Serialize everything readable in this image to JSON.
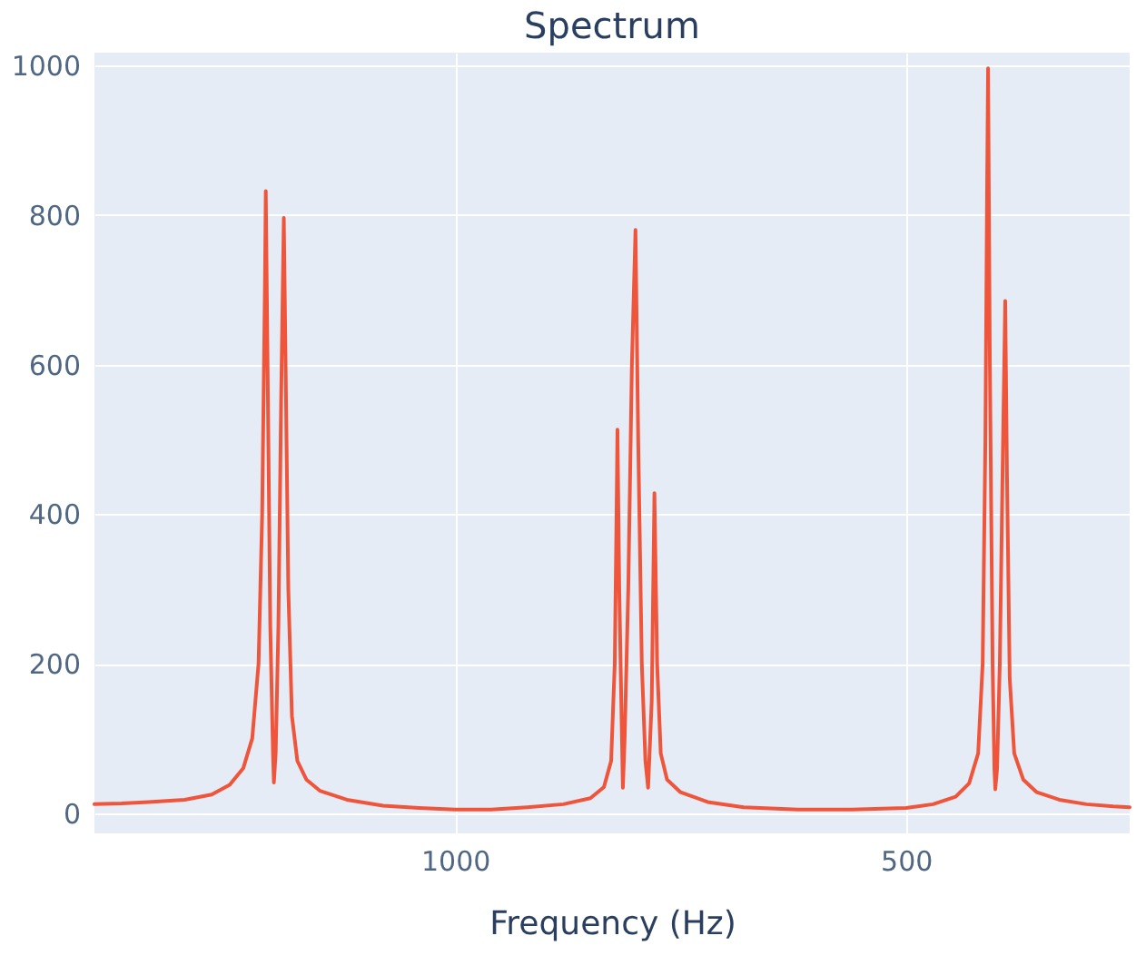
{
  "chart_data": {
    "type": "line",
    "title": "Spectrum",
    "xlabel": "Frequency (Hz)",
    "xlim": [
      1400,
      252
    ],
    "xticks": [
      1000,
      500
    ],
    "ylim": [
      -27,
      1017
    ],
    "yticks": [
      0,
      200,
      400,
      600,
      800,
      1000
    ],
    "grid": true,
    "legend": false,
    "marker": "none",
    "line_style": "solid",
    "series": [
      {
        "color": "#ef553b",
        "x": [
          1400,
          1370,
          1340,
          1300,
          1270,
          1250,
          1235,
          1225,
          1218,
          1214,
          1211,
          1210,
          1208,
          1205,
          1202,
          1201,
          1199,
          1196,
          1193,
          1190,
          1188,
          1185,
          1181,
          1175,
          1165,
          1150,
          1120,
          1080,
          1040,
          1000,
          960,
          920,
          880,
          850,
          835,
          827,
          823,
          821,
          820,
          818,
          815,
          814,
          812,
          808,
          804,
          800,
          797,
          793,
          789,
          786,
          782,
          779,
          776,
          772,
          765,
          750,
          720,
          680,
          620,
          560,
          500,
          470,
          445,
          430,
          420,
          415,
          412,
          410,
          409,
          407,
          404,
          402,
          401,
          399,
          396,
          393,
          390,
          388,
          385,
          380,
          370,
          355,
          330,
          300,
          270,
          252
        ],
        "values": [
          12,
          13,
          15,
          18,
          25,
          38,
          60,
          100,
          200,
          400,
          700,
          832,
          600,
          250,
          80,
          41,
          80,
          250,
          550,
          796,
          600,
          300,
          130,
          70,
          45,
          30,
          18,
          10,
          7,
          5,
          5,
          8,
          12,
          20,
          35,
          70,
          200,
          400,
          513,
          300,
          100,
          34,
          100,
          300,
          600,
          780,
          500,
          200,
          70,
          34,
          150,
          428,
          200,
          80,
          45,
          28,
          15,
          8,
          5,
          5,
          7,
          12,
          22,
          40,
          80,
          200,
          500,
          850,
          996,
          600,
          200,
          60,
          32,
          60,
          200,
          450,
          685,
          450,
          180,
          80,
          45,
          28,
          18,
          12,
          9,
          8
        ]
      }
    ]
  }
}
